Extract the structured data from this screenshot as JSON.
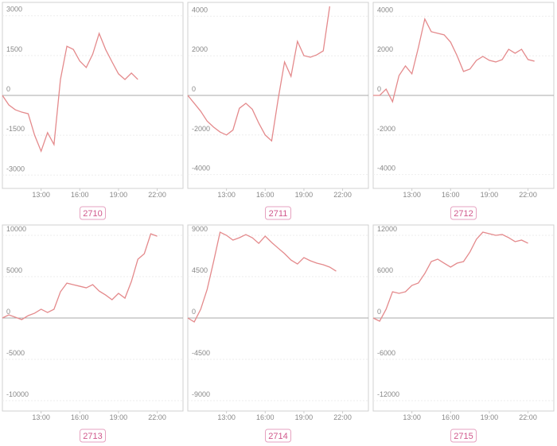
{
  "chart_data": [
    {
      "type": "line",
      "title": "2710",
      "color": "#e48a8c",
      "x": [
        10,
        10.5,
        11,
        11.5,
        12,
        12.5,
        13,
        13.5,
        14,
        14.5,
        15,
        15.5,
        16,
        16.5,
        17,
        17.5,
        18,
        18.5,
        19,
        19.5,
        20,
        20.5
      ],
      "values": [
        0,
        -360,
        -540,
        -630,
        -690,
        -1500,
        -2100,
        -1400,
        -1850,
        600,
        1850,
        1730,
        1290,
        1050,
        1550,
        2330,
        1730,
        1260,
        810,
        600,
        840,
        600
      ],
      "xlim": [
        10,
        24
      ],
      "xticks": [
        {
          "value": 13,
          "label": "13:00"
        },
        {
          "value": 16,
          "label": "16:00"
        },
        {
          "value": 19,
          "label": "19:00"
        },
        {
          "value": 22,
          "label": "22:00"
        }
      ],
      "ylim": [
        -3500,
        3500
      ],
      "yticks": [
        -3000,
        -1500,
        0,
        1500,
        3000
      ],
      "grid": true
    },
    {
      "type": "line",
      "title": "2711",
      "color": "#e48a8c",
      "x": [
        10,
        10.5,
        11,
        11.5,
        12,
        12.5,
        13,
        13.5,
        14,
        14.5,
        15,
        15.5,
        16,
        16.5,
        17,
        17.5,
        18,
        18.5,
        19,
        19.5,
        20,
        20.5,
        21
      ],
      "values": [
        0,
        -400,
        -800,
        -1300,
        -1600,
        -1850,
        -2000,
        -1750,
        -650,
        -400,
        -700,
        -1400,
        -2000,
        -2300,
        -200,
        1690,
        960,
        2730,
        2010,
        1930,
        2050,
        2250,
        4500
      ],
      "xlim": [
        10,
        24
      ],
      "xticks": [
        {
          "value": 13,
          "label": "13:00"
        },
        {
          "value": 16,
          "label": "16:00"
        },
        {
          "value": 19,
          "label": "19:00"
        },
        {
          "value": 22,
          "label": "22:00"
        }
      ],
      "ylim": [
        -4700,
        4700
      ],
      "yticks": [
        -4000,
        -2000,
        0,
        2000,
        4000
      ],
      "grid": true
    },
    {
      "type": "line",
      "title": "2712",
      "color": "#e48a8c",
      "x": [
        10,
        10.5,
        11,
        11.5,
        12,
        12.5,
        13,
        13.5,
        14,
        14.5,
        15,
        15.5,
        16,
        16.5,
        17,
        17.5,
        18,
        18.5,
        19,
        19.5,
        20,
        20.5,
        21,
        21.5,
        22,
        22.5
      ],
      "values": [
        0,
        0,
        320,
        -320,
        1000,
        1490,
        1090,
        2410,
        3860,
        3220,
        3140,
        3060,
        2690,
        2010,
        1210,
        1330,
        1770,
        1970,
        1770,
        1690,
        1810,
        2330,
        2130,
        2330,
        1810,
        1730
      ],
      "xlim": [
        10,
        24
      ],
      "xticks": [
        {
          "value": 13,
          "label": "13:00"
        },
        {
          "value": 16,
          "label": "16:00"
        },
        {
          "value": 19,
          "label": "19:00"
        },
        {
          "value": 22,
          "label": "22:00"
        }
      ],
      "ylim": [
        -4700,
        4700
      ],
      "yticks": [
        -4000,
        -2000,
        0,
        2000,
        4000
      ],
      "grid": true
    },
    {
      "type": "line",
      "title": "2713",
      "color": "#e48a8c",
      "x": [
        10,
        10.5,
        11,
        11.5,
        12,
        12.5,
        13,
        13.5,
        14,
        14.5,
        15,
        15.5,
        16,
        16.5,
        17,
        17.5,
        18,
        18.5,
        19,
        19.5,
        20,
        20.5,
        21,
        21.5,
        22
      ],
      "values": [
        0,
        380,
        100,
        -190,
        290,
        580,
        1060,
        670,
        1060,
        3170,
        4220,
        4030,
        3840,
        3650,
        4030,
        3260,
        2780,
        2210,
        2980,
        2400,
        4420,
        7100,
        7780,
        10180,
        9890
      ],
      "xlim": [
        10,
        24
      ],
      "xticks": [
        {
          "value": 13,
          "label": "13:00"
        },
        {
          "value": 16,
          "label": "16:00"
        },
        {
          "value": 19,
          "label": "19:00"
        },
        {
          "value": 22,
          "label": "22:00"
        }
      ],
      "ylim": [
        -11250,
        11250
      ],
      "yticks": [
        -10000,
        -5000,
        0,
        5000,
        10000
      ],
      "grid": true
    },
    {
      "type": "line",
      "title": "2714",
      "color": "#e48a8c",
      "x": [
        10,
        10.5,
        11,
        11.5,
        12,
        12.5,
        13,
        13.5,
        14,
        14.5,
        15,
        15.5,
        16,
        16.5,
        17,
        17.5,
        18,
        18.5,
        19,
        19.5,
        20,
        20.5,
        21,
        21.5
      ],
      "values": [
        0,
        -430,
        950,
        3110,
        6140,
        9340,
        9000,
        8480,
        8740,
        9080,
        8740,
        8130,
        8910,
        8220,
        7610,
        7010,
        6310,
        5880,
        6570,
        6230,
        5970,
        5800,
        5540,
        5100
      ],
      "xlim": [
        10,
        24
      ],
      "xticks": [
        {
          "value": 13,
          "label": "13:00"
        },
        {
          "value": 16,
          "label": "16:00"
        },
        {
          "value": 19,
          "label": "19:00"
        },
        {
          "value": 22,
          "label": "22:00"
        }
      ],
      "ylim": [
        -10125,
        10125
      ],
      "yticks": [
        -9000,
        -4500,
        0,
        4500,
        9000
      ],
      "grid": true
    },
    {
      "type": "line",
      "title": "2715",
      "color": "#e48a8c",
      "x": [
        10,
        10.5,
        11,
        11.5,
        12,
        12.5,
        13,
        13.5,
        14,
        14.5,
        15,
        15.5,
        16,
        16.5,
        17,
        17.5,
        18,
        18.5,
        19,
        19.5,
        20,
        20.5,
        21,
        21.5,
        22
      ],
      "values": [
        0,
        -460,
        1270,
        3810,
        3580,
        3810,
        4730,
        5080,
        6460,
        8190,
        8540,
        7960,
        7390,
        7960,
        8190,
        9580,
        11430,
        12460,
        12230,
        12000,
        12120,
        11660,
        11080,
        11310,
        10850
      ],
      "xlim": [
        10,
        24
      ],
      "xticks": [
        {
          "value": 13,
          "label": "13:00"
        },
        {
          "value": 16,
          "label": "16:00"
        },
        {
          "value": 19,
          "label": "19:00"
        },
        {
          "value": 22,
          "label": "22:00"
        }
      ],
      "ylim": [
        -13500,
        13500
      ],
      "yticks": [
        -12000,
        -6000,
        0,
        6000,
        12000
      ],
      "grid": true
    }
  ]
}
